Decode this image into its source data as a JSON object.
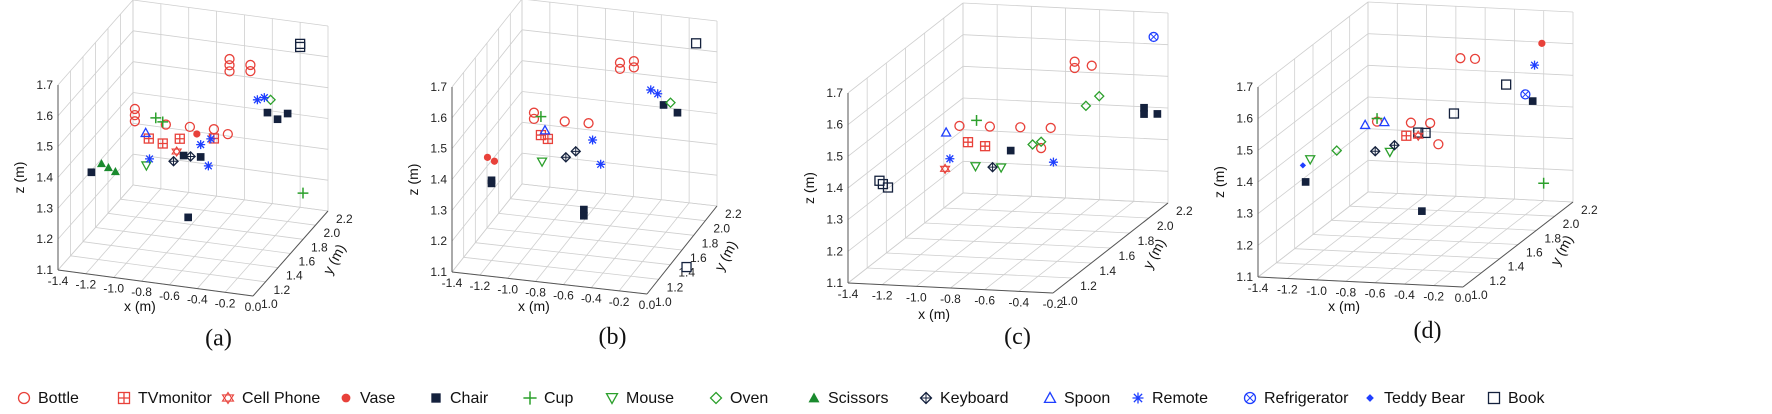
{
  "chart_data": {
    "type": "scatter",
    "legend_placement": "bottom",
    "grid": true,
    "x_label": "x (m)",
    "y_label": "y (m)",
    "z_label": "z (m)",
    "categories": [
      {
        "name": "Bottle",
        "marker": "circle-open",
        "color": "#e8413a"
      },
      {
        "name": "TVmonitor",
        "marker": "square-plus",
        "color": "#e8413a"
      },
      {
        "name": "Cell Phone",
        "marker": "hexagram",
        "color": "#e8413a"
      },
      {
        "name": "Vase",
        "marker": "circle-filled",
        "color": "#e8413a"
      },
      {
        "name": "Chair",
        "marker": "square-filled",
        "color": "#14213d"
      },
      {
        "name": "Cup",
        "marker": "plus",
        "color": "#2ca02c"
      },
      {
        "name": "Mouse",
        "marker": "triangle-down-open",
        "color": "#2ca02c"
      },
      {
        "name": "Oven",
        "marker": "diamond-open",
        "color": "#2ca02c"
      },
      {
        "name": "Scissors",
        "marker": "triangle-up-filled",
        "color": "#1a8a2e"
      },
      {
        "name": "Keyboard",
        "marker": "diamond-plus",
        "color": "#14213d"
      },
      {
        "name": "Spoon",
        "marker": "triangle-up-open",
        "color": "#1f3fff"
      },
      {
        "name": "Remote",
        "marker": "asterisk",
        "color": "#1f3fff"
      },
      {
        "name": "Refrigerator",
        "marker": "circle-x",
        "color": "#1f3fff"
      },
      {
        "name": "Teddy Bear",
        "marker": "diamond-filled",
        "color": "#1f3fff"
      },
      {
        "name": "Book",
        "marker": "square-open",
        "color": "#14213d"
      }
    ],
    "panels": [
      {
        "label": "(a)",
        "x_ticks": [
          "-1.4",
          "-1.2",
          "-1.0",
          "-0.8",
          "-0.6",
          "-0.4",
          "-0.2",
          "0.0"
        ],
        "y_ticks": [
          "1.0",
          "1.2",
          "1.4",
          "1.6",
          "1.8",
          "2.0",
          "2.2"
        ],
        "z_ticks": [
          "1.1",
          "1.2",
          "1.3",
          "1.4",
          "1.5",
          "1.6",
          "1.7"
        ],
        "points": [
          {
            "c": "Bottle",
            "x": -0.55,
            "y": 1.85,
            "z": 1.6
          },
          {
            "c": "Bottle",
            "x": -0.55,
            "y": 1.85,
            "z": 1.62
          },
          {
            "c": "Bottle",
            "x": -0.55,
            "y": 1.85,
            "z": 1.64
          },
          {
            "c": "Bottle",
            "x": -0.4,
            "y": 1.85,
            "z": 1.61
          },
          {
            "c": "Bottle",
            "x": -0.4,
            "y": 1.85,
            "z": 1.63
          },
          {
            "c": "Bottle",
            "x": -1.05,
            "y": 1.45,
            "z": 1.5
          },
          {
            "c": "Bottle",
            "x": -1.05,
            "y": 1.45,
            "z": 1.52
          },
          {
            "c": "Bottle",
            "x": -1.05,
            "y": 1.45,
            "z": 1.54
          },
          {
            "c": "Bottle",
            "x": -0.85,
            "y": 1.5,
            "z": 1.49
          },
          {
            "c": "Bottle",
            "x": -0.7,
            "y": 1.55,
            "z": 1.48
          },
          {
            "c": "Bottle",
            "x": -0.55,
            "y": 1.6,
            "z": 1.47
          },
          {
            "c": "Bottle",
            "x": -0.45,
            "y": 1.6,
            "z": 1.46
          },
          {
            "c": "TVmonitor",
            "x": -0.95,
            "y": 1.45,
            "z": 1.45
          },
          {
            "c": "TVmonitor",
            "x": -0.85,
            "y": 1.45,
            "z": 1.44
          },
          {
            "c": "TVmonitor",
            "x": -0.75,
            "y": 1.5,
            "z": 1.45
          },
          {
            "c": "TVmonitor",
            "x": -0.55,
            "y": 1.6,
            "z": 1.44
          },
          {
            "c": "Cell Phone",
            "x": -0.75,
            "y": 1.45,
            "z": 1.42
          },
          {
            "c": "Vase",
            "x": -0.65,
            "y": 1.55,
            "z": 1.46
          },
          {
            "c": "Chair",
            "x": -0.3,
            "y": 1.9,
            "z": 1.47
          },
          {
            "c": "Chair",
            "x": -0.25,
            "y": 1.95,
            "z": 1.44
          },
          {
            "c": "Chair",
            "x": -0.2,
            "y": 2.0,
            "z": 1.45
          },
          {
            "c": "Chair",
            "x": -0.6,
            "y": 1.5,
            "z": 1.4
          },
          {
            "c": "Chair",
            "x": -0.7,
            "y": 1.45,
            "z": 1.41
          },
          {
            "c": "Chair",
            "x": -1.25,
            "y": 1.2,
            "z": 1.38
          },
          {
            "c": "Chair",
            "x": -0.6,
            "y": 1.3,
            "z": 1.25
          },
          {
            "c": "Book",
            "x": -0.2,
            "y": 2.2,
            "z": 1.62
          },
          {
            "c": "Book",
            "x": -0.2,
            "y": 2.2,
            "z": 1.63
          },
          {
            "c": "Cup",
            "x": -0.9,
            "y": 1.45,
            "z": 1.52
          },
          {
            "c": "Cup",
            "x": -0.85,
            "y": 1.45,
            "z": 1.51
          },
          {
            "c": "Cup",
            "x": 0.0,
            "y": 1.8,
            "z": 1.25
          },
          {
            "c": "Mouse",
            "x": -0.9,
            "y": 1.3,
            "z": 1.4
          },
          {
            "c": "Oven",
            "x": -0.3,
            "y": 1.95,
            "z": 1.5
          },
          {
            "c": "Scissors",
            "x": -1.2,
            "y": 1.25,
            "z": 1.4
          },
          {
            "c": "Scissors",
            "x": -1.15,
            "y": 1.25,
            "z": 1.39
          },
          {
            "c": "Scissors",
            "x": -1.1,
            "y": 1.25,
            "z": 1.38
          },
          {
            "c": "Keyboard",
            "x": -0.75,
            "y": 1.4,
            "z": 1.4
          },
          {
            "c": "Keyboard",
            "x": -0.65,
            "y": 1.45,
            "z": 1.41
          },
          {
            "c": "Spoon",
            "x": -0.95,
            "y": 1.4,
            "z": 1.48
          },
          {
            "c": "Remote",
            "x": -0.6,
            "y": 1.5,
            "z": 1.44
          },
          {
            "c": "Remote",
            "x": -0.55,
            "y": 1.55,
            "z": 1.45
          },
          {
            "c": "Remote",
            "x": -0.9,
            "y": 1.35,
            "z": 1.41
          },
          {
            "c": "Remote",
            "x": -0.5,
            "y": 1.4,
            "z": 1.4
          },
          {
            "c": "Remote",
            "x": -0.35,
            "y": 1.85,
            "z": 1.52
          },
          {
            "c": "Remote",
            "x": -0.3,
            "y": 1.85,
            "z": 1.53
          }
        ]
      },
      {
        "label": "(b)",
        "x_ticks": [
          "-1.4",
          "-1.2",
          "-1.0",
          "-0.8",
          "-0.6",
          "-0.4",
          "-0.2",
          "0.0"
        ],
        "y_ticks": [
          "1.0",
          "1.2",
          "1.4",
          "1.6",
          "1.8",
          "2.0",
          "2.2"
        ],
        "z_ticks": [
          "1.1",
          "1.2",
          "1.3",
          "1.4",
          "1.5",
          "1.6",
          "1.7"
        ],
        "points": [
          {
            "c": "Bottle",
            "x": -0.55,
            "y": 1.85,
            "z": 1.6
          },
          {
            "c": "Bottle",
            "x": -0.55,
            "y": 1.85,
            "z": 1.62
          },
          {
            "c": "Bottle",
            "x": -0.45,
            "y": 1.85,
            "z": 1.61
          },
          {
            "c": "Bottle",
            "x": -0.45,
            "y": 1.85,
            "z": 1.63
          },
          {
            "c": "Bottle",
            "x": -1.0,
            "y": 1.45,
            "z": 1.51
          },
          {
            "c": "Bottle",
            "x": -1.0,
            "y": 1.45,
            "z": 1.53
          },
          {
            "c": "Bottle",
            "x": -0.8,
            "y": 1.5,
            "z": 1.5
          },
          {
            "c": "Bottle",
            "x": -0.65,
            "y": 1.55,
            "z": 1.49
          },
          {
            "c": "TVmonitor",
            "x": -0.95,
            "y": 1.45,
            "z": 1.46
          },
          {
            "c": "TVmonitor",
            "x": -0.9,
            "y": 1.45,
            "z": 1.45
          },
          {
            "c": "Vase",
            "x": -1.25,
            "y": 1.25,
            "z": 1.42
          },
          {
            "c": "Vase",
            "x": -1.2,
            "y": 1.25,
            "z": 1.41
          },
          {
            "c": "Chair",
            "x": -1.2,
            "y": 1.2,
            "z": 1.36
          },
          {
            "c": "Chair",
            "x": -1.2,
            "y": 1.2,
            "z": 1.35
          },
          {
            "c": "Chair",
            "x": -0.6,
            "y": 1.35,
            "z": 1.26
          },
          {
            "c": "Chair",
            "x": -0.6,
            "y": 1.35,
            "z": 1.24
          },
          {
            "c": "Chair",
            "x": -0.3,
            "y": 2.0,
            "z": 1.46
          },
          {
            "c": "Chair",
            "x": -0.2,
            "y": 2.0,
            "z": 1.44
          },
          {
            "c": "Book",
            "x": -0.15,
            "y": 2.2,
            "z": 1.62
          },
          {
            "c": "Book",
            "x": 0.2,
            "y": 1.2,
            "z": 1.15
          },
          {
            "c": "Cup",
            "x": -0.95,
            "y": 1.45,
            "z": 1.52
          },
          {
            "c": "Mouse",
            "x": -0.9,
            "y": 1.35,
            "z": 1.4
          },
          {
            "c": "Oven",
            "x": -0.25,
            "y": 2.0,
            "z": 1.47
          },
          {
            "c": "Keyboard",
            "x": -0.75,
            "y": 1.4,
            "z": 1.41
          },
          {
            "c": "Keyboard",
            "x": -0.7,
            "y": 1.45,
            "z": 1.42
          },
          {
            "c": "Spoon",
            "x": -0.9,
            "y": 1.4,
            "z": 1.49
          },
          {
            "c": "Remote",
            "x": -0.6,
            "y": 1.5,
            "z": 1.45
          },
          {
            "c": "Remote",
            "x": -0.5,
            "y": 1.4,
            "z": 1.4
          },
          {
            "c": "Remote",
            "x": -0.35,
            "y": 1.9,
            "z": 1.53
          },
          {
            "c": "Remote",
            "x": -0.3,
            "y": 1.9,
            "z": 1.52
          }
        ]
      },
      {
        "label": "(c)",
        "x_ticks": [
          "-1.4",
          "-1.2",
          "-1.0",
          "-0.8",
          "-0.6",
          "-0.4",
          "-0.2"
        ],
        "y_ticks": [
          "1.0",
          "1.2",
          "1.4",
          "1.6",
          "1.8",
          "2.0",
          "2.2"
        ],
        "z_ticks": [
          "1.1",
          "1.2",
          "1.3",
          "1.4",
          "1.5",
          "1.6",
          "1.7"
        ],
        "points": [
          {
            "c": "Bottle",
            "x": -0.55,
            "y": 1.85,
            "z": 1.6
          },
          {
            "c": "Bottle",
            "x": -0.55,
            "y": 1.85,
            "z": 1.62
          },
          {
            "c": "Bottle",
            "x": -0.45,
            "y": 1.85,
            "z": 1.61
          },
          {
            "c": "Bottle",
            "x": -1.0,
            "y": 1.45,
            "z": 1.5
          },
          {
            "c": "Bottle",
            "x": -0.85,
            "y": 1.5,
            "z": 1.49
          },
          {
            "c": "Bottle",
            "x": -0.7,
            "y": 1.55,
            "z": 1.48
          },
          {
            "c": "Bottle",
            "x": -0.55,
            "y": 1.6,
            "z": 1.47
          },
          {
            "c": "Bottle",
            "x": -0.55,
            "y": 1.5,
            "z": 1.43
          },
          {
            "c": "TVmonitor",
            "x": -0.95,
            "y": 1.45,
            "z": 1.45
          },
          {
            "c": "TVmonitor",
            "x": -0.85,
            "y": 1.45,
            "z": 1.44
          },
          {
            "c": "Cell Phone",
            "x": -1.0,
            "y": 1.3,
            "z": 1.4
          },
          {
            "c": "Chair",
            "x": -0.2,
            "y": 1.95,
            "z": 1.46
          },
          {
            "c": "Chair",
            "x": -0.2,
            "y": 1.95,
            "z": 1.44
          },
          {
            "c": "Chair",
            "x": -0.15,
            "y": 2.0,
            "z": 1.43
          },
          {
            "c": "Chair",
            "x": -0.7,
            "y": 1.45,
            "z": 1.43
          },
          {
            "c": "Book",
            "x": -1.3,
            "y": 1.15,
            "z": 1.39
          },
          {
            "c": "Book",
            "x": -1.28,
            "y": 1.15,
            "z": 1.38
          },
          {
            "c": "Book",
            "x": -1.25,
            "y": 1.15,
            "z": 1.37
          },
          {
            "c": "Cup",
            "x": -0.9,
            "y": 1.45,
            "z": 1.52
          },
          {
            "c": "Mouse",
            "x": -0.85,
            "y": 1.35,
            "z": 1.4
          },
          {
            "c": "Mouse",
            "x": -0.7,
            "y": 1.35,
            "z": 1.4
          },
          {
            "c": "Oven",
            "x": -0.4,
            "y": 1.7,
            "z": 1.52
          },
          {
            "c": "Oven",
            "x": -0.35,
            "y": 1.75,
            "z": 1.54
          },
          {
            "c": "Oven",
            "x": -0.6,
            "y": 1.5,
            "z": 1.44
          },
          {
            "c": "Oven",
            "x": -0.55,
            "y": 1.5,
            "z": 1.45
          },
          {
            "c": "Keyboard",
            "x": -0.75,
            "y": 1.35,
            "z": 1.4
          },
          {
            "c": "Spoon",
            "x": -1.05,
            "y": 1.4,
            "z": 1.49
          },
          {
            "c": "Remote",
            "x": -1.0,
            "y": 1.35,
            "z": 1.42
          },
          {
            "c": "Remote",
            "x": -0.45,
            "y": 1.45,
            "z": 1.4
          },
          {
            "c": "Refrigerator",
            "x": -0.2,
            "y": 2.05,
            "z": 1.66
          }
        ]
      },
      {
        "label": "(d)",
        "x_ticks": [
          "-1.4",
          "-1.2",
          "-1.0",
          "-0.8",
          "-0.6",
          "-0.4",
          "-0.2",
          "0.0"
        ],
        "y_ticks": [
          "1.0",
          "1.2",
          "1.4",
          "1.6",
          "1.8",
          "2.0",
          "2.2"
        ],
        "z_ticks": [
          "1.1",
          "1.2",
          "1.3",
          "1.4",
          "1.5",
          "1.6",
          "1.7"
        ],
        "points": [
          {
            "c": "Bottle",
            "x": -0.55,
            "y": 1.85,
            "z": 1.62
          },
          {
            "c": "Bottle",
            "x": -0.45,
            "y": 1.85,
            "z": 1.62
          },
          {
            "c": "Bottle",
            "x": -0.9,
            "y": 1.5,
            "z": 1.49
          },
          {
            "c": "Bottle",
            "x": -0.7,
            "y": 1.55,
            "z": 1.48
          },
          {
            "c": "Bottle",
            "x": -0.6,
            "y": 1.6,
            "z": 1.47
          },
          {
            "c": "Bottle",
            "x": -0.45,
            "y": 1.45,
            "z": 1.44
          },
          {
            "c": "Vase",
            "x": -0.15,
            "y": 2.1,
            "z": 1.62
          },
          {
            "c": "Teddy Bear",
            "x": -1.25,
            "y": 1.25,
            "z": 1.4
          },
          {
            "c": "Chair",
            "x": -1.2,
            "y": 1.2,
            "z": 1.36
          },
          {
            "c": "Chair",
            "x": -0.15,
            "y": 2.0,
            "z": 1.46
          },
          {
            "c": "Chair",
            "x": -0.5,
            "y": 1.35,
            "z": 1.25
          },
          {
            "c": "Book",
            "x": -0.3,
            "y": 1.95,
            "z": 1.52
          },
          {
            "c": "Book",
            "x": -0.5,
            "y": 1.7,
            "z": 1.48
          },
          {
            "c": "Book",
            "x": -0.6,
            "y": 1.55,
            "z": 1.45
          },
          {
            "c": "Book",
            "x": -0.65,
            "y": 1.55,
            "z": 1.45
          },
          {
            "c": "Cup",
            "x": -0.9,
            "y": 1.5,
            "z": 1.5
          },
          {
            "c": "Cup",
            "x": 0.05,
            "y": 1.8,
            "z": 1.25
          },
          {
            "c": "Mouse",
            "x": -1.2,
            "y": 1.25,
            "z": 1.42
          },
          {
            "c": "Mouse",
            "x": -0.75,
            "y": 1.4,
            "z": 1.42
          },
          {
            "c": "Oven",
            "x": -1.05,
            "y": 1.3,
            "z": 1.44
          },
          {
            "c": "Keyboard",
            "x": -0.85,
            "y": 1.4,
            "z": 1.42
          },
          {
            "c": "Keyboard",
            "x": -0.75,
            "y": 1.45,
            "z": 1.43
          },
          {
            "c": "Spoon",
            "x": -0.95,
            "y": 1.45,
            "z": 1.49
          },
          {
            "c": "Spoon",
            "x": -0.85,
            "y": 1.5,
            "z": 1.49
          },
          {
            "c": "Refrigerator",
            "x": -0.2,
            "y": 2.0,
            "z": 1.48
          },
          {
            "c": "Remote",
            "x": -0.2,
            "y": 2.1,
            "z": 1.55
          },
          {
            "c": "Cell Phone",
            "x": -0.65,
            "y": 1.55,
            "z": 1.44
          },
          {
            "c": "TVmonitor",
            "x": -0.7,
            "y": 1.5,
            "z": 1.45
          }
        ]
      }
    ]
  }
}
